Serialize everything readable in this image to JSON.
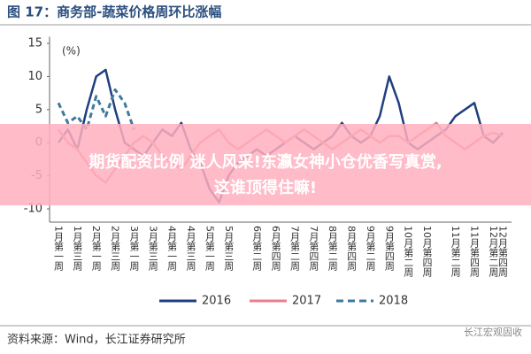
{
  "chart_data": {
    "type": "line",
    "title": "图 17：商务部-蔬菜价格周环比涨幅",
    "y_label": "(%)",
    "categories": [
      "1月第一周",
      null,
      "1月第三周",
      null,
      "2月第一周",
      null,
      "2月第三周",
      null,
      "3月第一周",
      null,
      "3月第三周",
      null,
      "4月第一周",
      null,
      "4月第三周",
      null,
      "5月第一周",
      null,
      "5月第三周",
      null,
      null,
      "6月第二周",
      null,
      "6月第四周",
      null,
      "7月第二周",
      null,
      "7月第四周",
      null,
      "8月第二周",
      null,
      "8月第四周",
      null,
      "9月第二周",
      null,
      "9月第四周",
      null,
      "10月第二周",
      null,
      "10月第四周",
      null,
      null,
      "11月第二周",
      null,
      "11月第四周",
      null,
      "12月第二周",
      "12月第四周"
    ],
    "series": [
      {
        "name": "2016",
        "color": "#1f3f7f",
        "dash": false,
        "values": [
          0,
          2,
          -1,
          5,
          10,
          11,
          5,
          0,
          -1,
          -2,
          0,
          2,
          1,
          3,
          -1,
          -3,
          -7,
          -9,
          -5,
          -3,
          -2,
          -1,
          -2,
          -1,
          0,
          1,
          0,
          -1,
          0,
          1,
          3,
          1,
          0,
          1,
          4,
          10,
          6,
          0,
          -1,
          0,
          1,
          2,
          4,
          5,
          6,
          1,
          0,
          1.5
        ]
      },
      {
        "name": "2017",
        "color": "#e8808c",
        "dash": false,
        "values": [
          2,
          0,
          -1,
          -3,
          -5,
          -6,
          -4,
          -2,
          0,
          1,
          0,
          -2,
          -3,
          -4,
          -2,
          0,
          1,
          2,
          0,
          -1,
          0,
          1,
          2,
          1,
          0,
          1,
          2,
          1,
          0,
          -1,
          0,
          1,
          2,
          1,
          0,
          1,
          1,
          0,
          1,
          2,
          3,
          1,
          0,
          -1,
          0,
          1,
          1.5,
          1
        ]
      },
      {
        "name": "2018",
        "color": "#3f7a9c",
        "dash": true,
        "values": [
          6,
          3,
          4,
          2,
          7,
          4,
          8,
          6,
          2,
          null,
          null,
          null,
          null,
          null,
          null,
          null,
          null,
          null,
          null,
          null,
          null,
          null,
          null,
          null,
          null,
          null,
          null,
          null,
          null,
          null,
          null,
          null,
          null,
          null,
          null,
          null,
          null,
          null,
          null,
          null,
          null,
          null,
          null,
          null,
          null,
          null,
          null,
          null
        ]
      }
    ],
    "ylim": [
      -12,
      16
    ],
    "yticks": [
      15,
      10,
      5,
      0,
      -5,
      -10
    ],
    "legend": "bottom",
    "source": "资料来源：Wind，长江证券研究所",
    "watermark": "长江宏观固收"
  },
  "overlay": {
    "lines": [
      "期货配资比例 迷人风采!东瀛女神小仓优香写真赏,",
      "这谁顶得住嘛!"
    ]
  }
}
